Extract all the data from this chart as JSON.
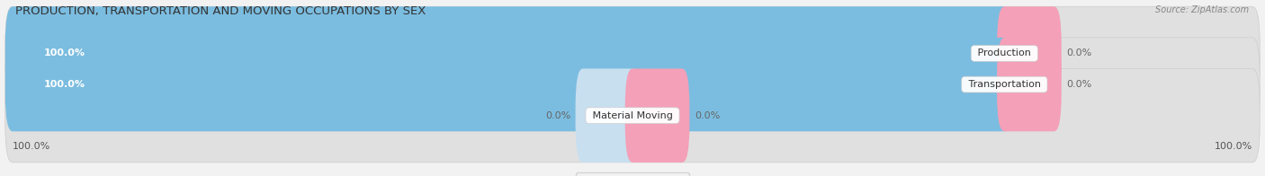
{
  "title": "PRODUCTION, TRANSPORTATION AND MOVING OCCUPATIONS BY SEX",
  "source": "Source: ZipAtlas.com",
  "categories": [
    "Production",
    "Transportation",
    "Material Moving"
  ],
  "male_values": [
    100.0,
    100.0,
    0.0
  ],
  "female_values": [
    0.0,
    0.0,
    0.0
  ],
  "male_color": "#7bbde0",
  "female_color": "#f4a0b8",
  "male_color_light": "#c8dff0",
  "female_color_light": "#f9cdd9",
  "bg_color": "#f2f2f2",
  "bar_bg_color": "#e0e0e0",
  "title_fontsize": 9.5,
  "label_fontsize": 8,
  "tick_fontsize": 8,
  "figsize": [
    14.06,
    1.96
  ],
  "dpi": 100,
  "xlim": [
    -100,
    100
  ],
  "bar_height": 0.62,
  "x_left_label": "100.0%",
  "x_right_label": "100.0%"
}
